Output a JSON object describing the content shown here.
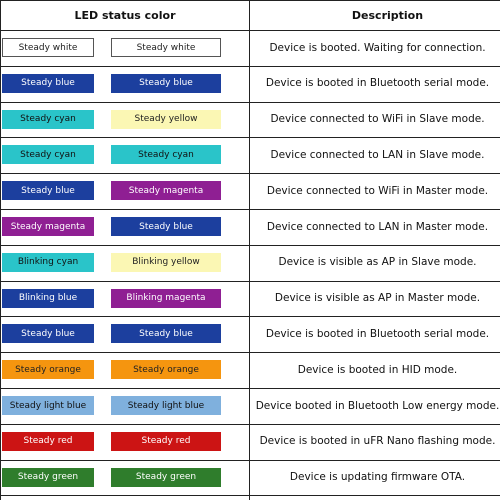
{
  "header": {
    "led_label": "LED status color",
    "desc_label": "Description"
  },
  "rows": [
    {
      "led1": {
        "label": "Steady white",
        "bg": "#ffffff",
        "fg": "#222222",
        "border": "#555555"
      },
      "led2": {
        "label": "Steady white",
        "bg": "#ffffff",
        "fg": "#222222",
        "border": "#555555"
      },
      "description": "Device is booted. Waiting for connection."
    },
    {
      "led1": {
        "label": "Steady blue",
        "bg": "#1c3f9e",
        "fg": "#ffffff"
      },
      "led2": {
        "label": "Steady blue",
        "bg": "#1c3f9e",
        "fg": "#ffffff"
      },
      "description": "Device is booted in Bluetooth serial mode."
    },
    {
      "led1": {
        "label": "Steady cyan",
        "bg": "#2ac4c9",
        "fg": "#111111"
      },
      "led2": {
        "label": "Steady yellow",
        "bg": "#fbf7b4",
        "fg": "#222222"
      },
      "description": "Device connected to WiFi in Slave mode."
    },
    {
      "led1": {
        "label": "Steady cyan",
        "bg": "#2ac4c9",
        "fg": "#111111"
      },
      "led2": {
        "label": "Steady cyan",
        "bg": "#2ac4c9",
        "fg": "#111111"
      },
      "description": "Device connected to LAN in Slave mode."
    },
    {
      "led1": {
        "label": "Steady blue",
        "bg": "#1c3f9e",
        "fg": "#ffffff"
      },
      "led2": {
        "label": "Steady magenta",
        "bg": "#8f1f93",
        "fg": "#ffffff"
      },
      "description": "Device connected to WiFi in Master mode."
    },
    {
      "led1": {
        "label": "Steady magenta",
        "bg": "#8f1f93",
        "fg": "#ffffff"
      },
      "led2": {
        "label": "Steady blue",
        "bg": "#1c3f9e",
        "fg": "#ffffff"
      },
      "description": "Device connected to LAN in Master mode."
    },
    {
      "led1": {
        "label": "Blinking cyan",
        "bg": "#2ac4c9",
        "fg": "#111111"
      },
      "led2": {
        "label": "Blinking yellow",
        "bg": "#fbf7b4",
        "fg": "#222222"
      },
      "description": "Device is visible as AP in Slave mode."
    },
    {
      "led1": {
        "label": "Blinking blue",
        "bg": "#1c3f9e",
        "fg": "#ffffff"
      },
      "led2": {
        "label": "Blinking magenta",
        "bg": "#8f1f93",
        "fg": "#ffffff"
      },
      "description": "Device is visible as AP in Master mode."
    },
    {
      "led1": {
        "label": "Steady blue",
        "bg": "#1c3f9e",
        "fg": "#ffffff"
      },
      "led2": {
        "label": "Steady blue",
        "bg": "#1c3f9e",
        "fg": "#ffffff"
      },
      "description": "Device is booted in Bluetooth serial mode."
    },
    {
      "led1": {
        "label": "Steady orange",
        "bg": "#f5950f",
        "fg": "#222222"
      },
      "led2": {
        "label": "Steady orange",
        "bg": "#f5950f",
        "fg": "#222222"
      },
      "description": "Device is booted in HID mode."
    },
    {
      "led1": {
        "label": "Steady light blue",
        "bg": "#7fb0dd",
        "fg": "#111111"
      },
      "led2": {
        "label": "Steady light blue",
        "bg": "#7fb0dd",
        "fg": "#111111"
      },
      "description": "Device booted in Bluetooth Low energy mode."
    },
    {
      "led1": {
        "label": "Steady red",
        "bg": "#cc1414",
        "fg": "#ffffff"
      },
      "led2": {
        "label": "Steady red",
        "bg": "#cc1414",
        "fg": "#ffffff"
      },
      "description": "Device is booted in uFR Nano flashing mode."
    },
    {
      "led1": {
        "label": "Steady green",
        "bg": "#2f7d2c",
        "fg": "#ffffff"
      },
      "led2": {
        "label": "Steady green",
        "bg": "#2f7d2c",
        "fg": "#ffffff"
      },
      "description": "Device is updating firmware OTA."
    }
  ]
}
